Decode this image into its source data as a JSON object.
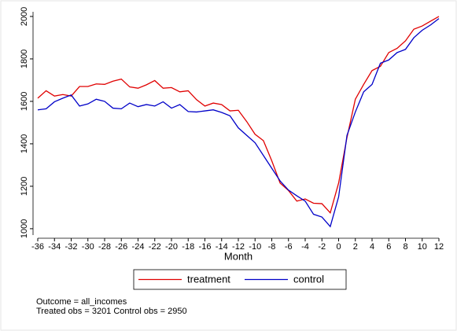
{
  "chart_data": {
    "type": "line",
    "x_label": "Month",
    "x": [
      -36,
      -35,
      -34,
      -33,
      -32,
      -31,
      -30,
      -29,
      -28,
      -27,
      -26,
      -25,
      -24,
      -23,
      -22,
      -21,
      -20,
      -19,
      -18,
      -17,
      -16,
      -15,
      -14,
      -13,
      -12,
      -11,
      -10,
      -9,
      -8,
      -7,
      -6,
      -5,
      -4,
      -3,
      -2,
      -1,
      0,
      1,
      2,
      3,
      4,
      5,
      6,
      7,
      8,
      9,
      10,
      11,
      12
    ],
    "series": [
      {
        "name": "treatment",
        "color": "#e00000",
        "values": [
          1615,
          1650,
          1625,
          1632,
          1625,
          1670,
          1670,
          1682,
          1680,
          1695,
          1705,
          1668,
          1662,
          1678,
          1698,
          1662,
          1665,
          1645,
          1650,
          1608,
          1578,
          1592,
          1585,
          1555,
          1558,
          1505,
          1445,
          1415,
          1320,
          1215,
          1180,
          1130,
          1140,
          1120,
          1118,
          1075,
          1215,
          1430,
          1610,
          1680,
          1745,
          1765,
          1830,
          1850,
          1885,
          1940,
          1955,
          1978,
          2000
        ]
      },
      {
        "name": "control",
        "color": "#0000c8",
        "values": [
          1560,
          1565,
          1598,
          1615,
          1630,
          1578,
          1588,
          1610,
          1600,
          1568,
          1565,
          1592,
          1575,
          1585,
          1578,
          1598,
          1568,
          1585,
          1552,
          1550,
          1555,
          1560,
          1548,
          1532,
          1475,
          1440,
          1405,
          1345,
          1285,
          1225,
          1182,
          1155,
          1130,
          1068,
          1055,
          1010,
          1150,
          1440,
          1550,
          1645,
          1680,
          1780,
          1795,
          1830,
          1845,
          1900,
          1935,
          1960,
          1990
        ]
      }
    ],
    "xlim": [
      -36,
      12
    ],
    "xticks": [
      -36,
      -34,
      -32,
      -30,
      -28,
      -26,
      -24,
      -22,
      -20,
      -18,
      -16,
      -14,
      -12,
      -10,
      -8,
      -6,
      -4,
      -2,
      0,
      2,
      4,
      6,
      8,
      10,
      12
    ],
    "ylim": [
      970,
      2022
    ],
    "yticks": [
      1000,
      1200,
      1400,
      1600,
      1800,
      2000
    ],
    "notes": [
      "Outcome = all_incomes",
      "Treated obs = 3201 Control obs = 2950"
    ]
  }
}
